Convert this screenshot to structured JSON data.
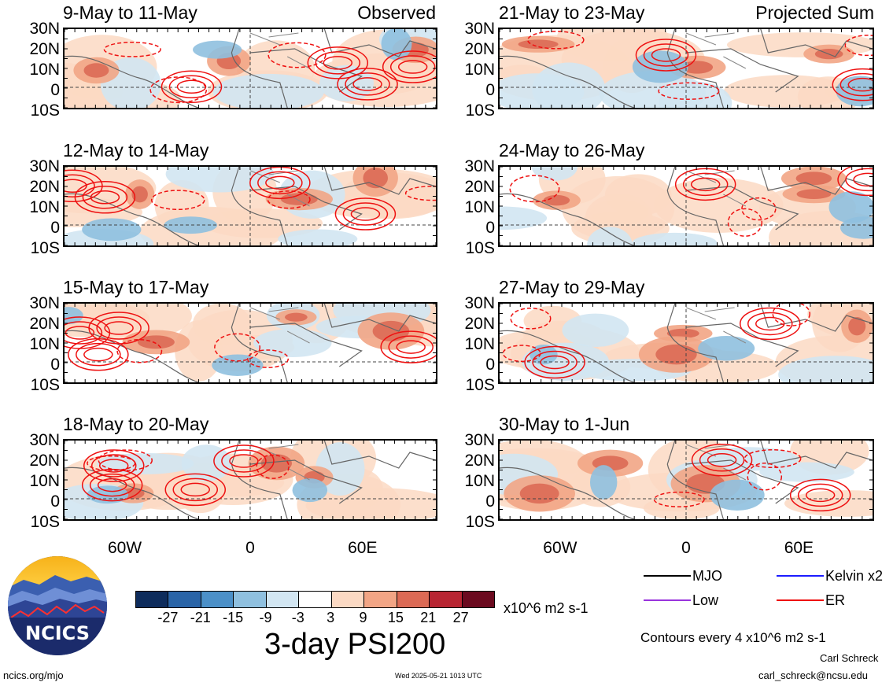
{
  "panels_left": [
    {
      "title": "9-May to 11-May",
      "corner": "Observed"
    },
    {
      "title": "12-May to 14-May",
      "corner": ""
    },
    {
      "title": "15-May to 17-May",
      "corner": ""
    },
    {
      "title": "18-May to 20-May",
      "corner": ""
    }
  ],
  "panels_right": [
    {
      "title": "21-May to 23-May",
      "corner": "Projected Sum"
    },
    {
      "title": "24-May to 26-May",
      "corner": ""
    },
    {
      "title": "27-May to 29-May",
      "corner": ""
    },
    {
      "title": "30-May to 1-Jun",
      "corner": ""
    }
  ],
  "lat_labels": [
    "30N",
    "20N",
    "10N",
    "0",
    "10S"
  ],
  "lon_labels": [
    "60W",
    "0",
    "60E"
  ],
  "colorbar": {
    "ticks": [
      "-27",
      "-21",
      "-15",
      "-9",
      "-3",
      "3",
      "9",
      "15",
      "21",
      "27"
    ],
    "colors": [
      "#0e2c5c",
      "#2a64a8",
      "#4b90c8",
      "#8fc0df",
      "#d2e6f2",
      "#ffffff",
      "#fbd9c3",
      "#f2a585",
      "#dc6a55",
      "#b82532",
      "#6b0a1f"
    ],
    "units": "x10^6 m2 s-1"
  },
  "legend": {
    "items": [
      {
        "label": "MJO",
        "color": "#000000"
      },
      {
        "label": "Kelvin x2",
        "color": "#1c1cff"
      },
      {
        "label": "Low",
        "color": "#9933dd"
      },
      {
        "label": "ER",
        "color": "#ee1111"
      }
    ],
    "contours_note": "Contours every 4 x10^6 m2 s-1"
  },
  "main_title": "3-day PSI200",
  "logo_text": "NCICS",
  "footer": {
    "url": "ncics.org/mjo",
    "timestamp": "Wed 2025-05-21 1013 UTC",
    "author": "Carl Schreck",
    "email": "carl_schreck@ncsu.edu"
  }
}
